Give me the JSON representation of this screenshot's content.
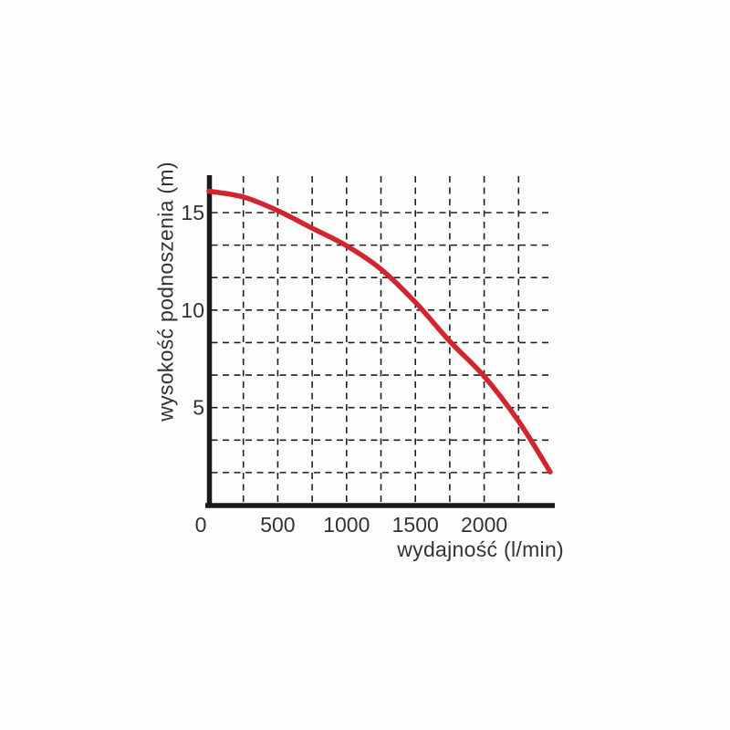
{
  "figure": {
    "background": "#fdfdfd",
    "description": "pump performance curve: lifting height vs flow rate"
  },
  "style": {
    "curve_color": "#d1262f",
    "axis_color": "#1a1a1a",
    "grid_color": "#1f1f1f",
    "text_color": "#333333"
  },
  "chart_data": {
    "type": "line",
    "title": "",
    "xlabel": "wydajność (l/min)",
    "ylabel": "wysokość podnoszenia (m)",
    "xlim": [
      0,
      2500
    ],
    "ylim": [
      0,
      16.8
    ],
    "x_tick_values": [
      0,
      500,
      1000,
      1500,
      2000
    ],
    "x_tick_labels": [
      "0",
      "500",
      "1000",
      "1500",
      "2000"
    ],
    "y_tick_values": [
      5,
      10,
      15
    ],
    "y_tick_labels": [
      "5",
      "10",
      "15"
    ],
    "x_gridline_values": [
      250,
      500,
      750,
      1000,
      1250,
      1500,
      1750,
      2000,
      2250
    ],
    "y_gridline_values": [
      1.667,
      3.333,
      5,
      6.667,
      8.333,
      10,
      11.667,
      13.333,
      15
    ],
    "grid": "dashed",
    "legend": "none",
    "series": [
      {
        "name": "pump-head-curve",
        "color": "#d1262f",
        "x": [
          0,
          250,
          500,
          750,
          1000,
          1250,
          1500,
          1750,
          2000,
          2250,
          2480
        ],
        "y": [
          16.1,
          15.8,
          15.1,
          14.2,
          13.3,
          12.1,
          10.4,
          8.4,
          6.6,
          4.3,
          1.7
        ]
      }
    ]
  }
}
